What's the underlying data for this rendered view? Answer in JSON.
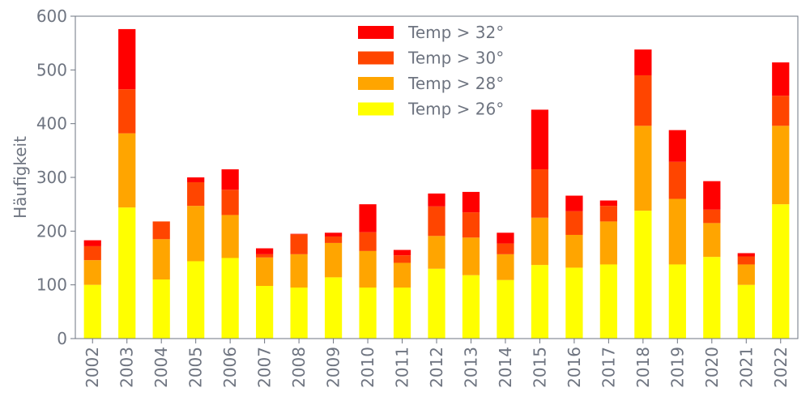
{
  "chart_data": {
    "type": "bar",
    "stacked": true,
    "xlabel": "",
    "ylabel": "Häufigkeit",
    "ylim": [
      0,
      600
    ],
    "yticks": [
      0,
      100,
      200,
      300,
      400,
      500,
      600
    ],
    "grid": false,
    "legend_position": "top-center",
    "categories": [
      "2002",
      "2003",
      "2004",
      "2005",
      "2006",
      "2007",
      "2008",
      "2009",
      "2010",
      "2011",
      "2012",
      "2013",
      "2014",
      "2015",
      "2016",
      "2017",
      "2018",
      "2019",
      "2020",
      "2021",
      "2022"
    ],
    "series": [
      {
        "name": "Temp > 26°",
        "color": "#ffff00",
        "values": [
          100,
          244,
          110,
          144,
          150,
          98,
          95,
          114,
          95,
          95,
          130,
          118,
          109,
          137,
          132,
          138,
          238,
          138,
          152,
          100,
          250
        ]
      },
      {
        "name": "Temp > 28°",
        "color": "#ffa500",
        "values": [
          46,
          138,
          75,
          103,
          80,
          53,
          62,
          64,
          68,
          46,
          61,
          70,
          48,
          88,
          61,
          80,
          158,
          122,
          63,
          38,
          146
        ]
      },
      {
        "name": "Temp > 30°",
        "color": "#ff4500",
        "values": [
          26,
          82,
          33,
          44,
          47,
          6,
          37,
          12,
          35,
          14,
          55,
          47,
          20,
          90,
          44,
          29,
          94,
          69,
          25,
          15,
          56
        ]
      },
      {
        "name": "Temp > 32°",
        "color": "#ff0000",
        "values": [
          11,
          112,
          0,
          9,
          38,
          11,
          1,
          7,
          52,
          10,
          24,
          38,
          20,
          111,
          29,
          10,
          48,
          59,
          53,
          6,
          62
        ]
      }
    ],
    "axis_color": "#6e7480"
  }
}
